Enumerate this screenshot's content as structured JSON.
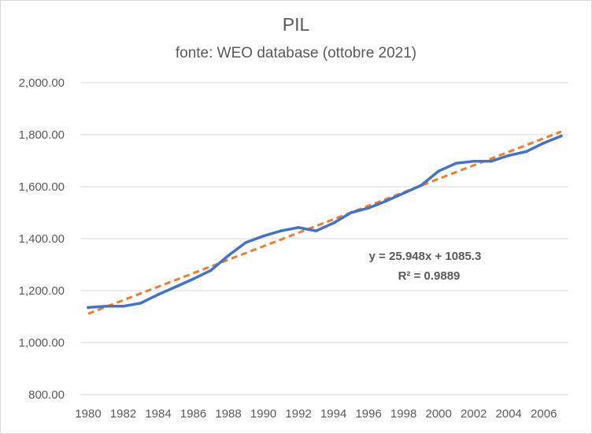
{
  "chart_data": {
    "type": "line",
    "title": "PIL",
    "subtitle": "fonte: WEO database (ottobre 2021)",
    "xlabel": "",
    "ylabel": "",
    "ylim": [
      800,
      2000
    ],
    "ytick_values": [
      800,
      1000,
      1200,
      1400,
      1600,
      1800,
      2000
    ],
    "yticks": [
      "800.00",
      "1,000.00",
      "1,200.00",
      "1,400.00",
      "1,600.00",
      "1,800.00",
      "2,000.00"
    ],
    "xticks": [
      "1980",
      "1982",
      "1984",
      "1986",
      "1988",
      "1990",
      "1992",
      "1994",
      "1996",
      "1998",
      "2000",
      "2002",
      "2004",
      "2006"
    ],
    "x": [
      1980,
      1981,
      1982,
      1983,
      1984,
      1985,
      1986,
      1987,
      1988,
      1989,
      1990,
      1991,
      1992,
      1993,
      1994,
      1995,
      1996,
      1997,
      1998,
      1999,
      2000,
      2001,
      2002,
      2003,
      2004,
      2005,
      2006,
      2007
    ],
    "grid": true,
    "series": [
      {
        "values": [
          1135,
          1140,
          1140,
          1152,
          1185,
          1215,
          1245,
          1278,
          1335,
          1385,
          1410,
          1430,
          1443,
          1430,
          1460,
          1500,
          1518,
          1545,
          1575,
          1605,
          1660,
          1690,
          1698,
          1698,
          1720,
          1735,
          1768,
          1795
        ],
        "color": "#4472c4",
        "style": "solid"
      }
    ],
    "trendline": {
      "type": "linear",
      "slope": 25.948,
      "intercept": 1085.3,
      "color": "#ed7d31",
      "style": "dashed",
      "equation_label": "y = 25.948x + 1085.3",
      "r2_label": "R² = 0.9889"
    }
  }
}
